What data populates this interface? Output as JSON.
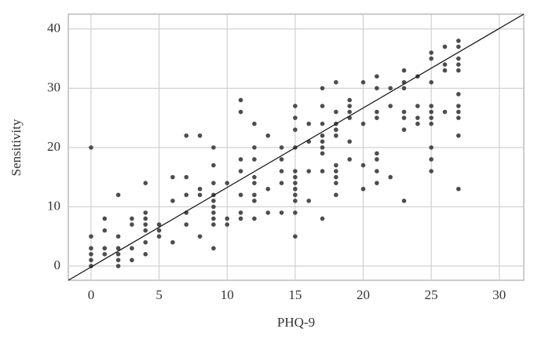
{
  "chart_data": {
    "type": "scatter",
    "xlabel": "PHQ-9",
    "ylabel": "Sensitivity",
    "xlim": [
      -1.67,
      31.8
    ],
    "ylim": [
      -2.4,
      42.5
    ],
    "xticks": [
      0,
      5,
      10,
      15,
      20,
      25,
      30
    ],
    "yticks": [
      0,
      10,
      20,
      30,
      40
    ],
    "grid": true,
    "color": "#4d4d4d",
    "x": [
      0,
      0,
      0,
      0,
      0,
      0,
      1,
      1,
      1,
      1,
      2,
      2,
      2,
      2,
      2,
      2,
      3,
      3,
      3,
      3,
      4,
      4,
      4,
      4,
      4,
      4,
      4,
      5,
      5,
      5,
      6,
      6,
      6,
      7,
      7,
      7,
      7,
      7,
      8,
      8,
      8,
      8,
      9,
      9,
      9,
      9,
      9,
      9,
      9,
      9,
      9,
      9,
      10,
      10,
      10,
      11,
      11,
      11,
      11,
      11,
      11,
      11,
      12,
      12,
      12,
      12,
      12,
      12,
      12,
      12,
      13,
      13,
      13,
      14,
      14,
      14,
      14,
      14,
      15,
      15,
      15,
      15,
      15,
      15,
      15,
      15,
      15,
      15,
      15,
      15,
      16,
      16,
      16,
      16,
      17,
      17,
      17,
      17,
      17,
      17,
      17,
      17,
      17,
      18,
      18,
      18,
      18,
      18,
      18,
      18,
      18,
      18,
      18,
      19,
      19,
      19,
      19,
      19,
      19,
      20,
      20,
      20,
      20,
      21,
      21,
      21,
      21,
      21,
      21,
      21,
      21,
      22,
      22,
      22,
      23,
      23,
      23,
      23,
      23,
      23,
      23,
      24,
      24,
      24,
      24,
      25,
      25,
      25,
      25,
      25,
      25,
      25,
      25,
      25,
      25,
      26,
      26,
      26,
      26,
      27,
      27,
      27,
      27,
      27,
      27,
      27,
      27,
      27,
      27,
      27
    ],
    "y": [
      20,
      5,
      3,
      2,
      1,
      0,
      8,
      6,
      3,
      2,
      12,
      5,
      3,
      2,
      1,
      0,
      8,
      7,
      3,
      1,
      14,
      9,
      8,
      7,
      6,
      4,
      2,
      7,
      6,
      5,
      15,
      11,
      4,
      22,
      15,
      12,
      9,
      7,
      22,
      13,
      12,
      5,
      20,
      17,
      14,
      12,
      11,
      10,
      9,
      8,
      7,
      3,
      14,
      8,
      7,
      28,
      26,
      18,
      16,
      12,
      9,
      8,
      24,
      20,
      18,
      15,
      14,
      12,
      11,
      8,
      22,
      13,
      9,
      20,
      18,
      16,
      14,
      9,
      27,
      25,
      23,
      20,
      16,
      15,
      14,
      13,
      12,
      11,
      9,
      5,
      24,
      21,
      16,
      11,
      30,
      27,
      24,
      22,
      21,
      20,
      19,
      16,
      8,
      31,
      26,
      24,
      23,
      22,
      17,
      16,
      15,
      14,
      12,
      28,
      27,
      26,
      25,
      21,
      18,
      31,
      24,
      17,
      13,
      32,
      30,
      26,
      25,
      19,
      18,
      16,
      14,
      30,
      27,
      15,
      33,
      31,
      30,
      26,
      25,
      23,
      11,
      32,
      27,
      25,
      24,
      36,
      35,
      31,
      27,
      26,
      25,
      24,
      20,
      18,
      16,
      37,
      34,
      33,
      26,
      38,
      37,
      35,
      34,
      33,
      29,
      27,
      26,
      25,
      22,
      13
    ],
    "reference_line": {
      "x": [
        -1.67,
        31.8
      ],
      "y": [
        -2.4,
        42.5
      ]
    }
  }
}
